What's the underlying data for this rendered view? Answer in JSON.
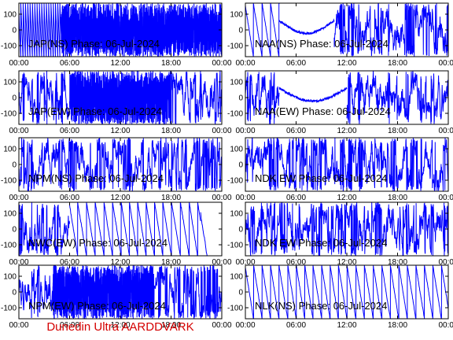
{
  "footer": "Dunedin Ultra AARDDVARK",
  "x_tick_labels": [
    "00:00",
    "06:00",
    "12:00",
    "18:00",
    "00:00"
  ],
  "y_tick_labels": [
    "100",
    "0",
    "-100"
  ],
  "colors": {
    "trace": "#0000ff",
    "footer": "#d40000",
    "axes": "#000000"
  },
  "chart_data": [
    {
      "type": "line",
      "title": "JAP(NS) Phase: 06-Jul-2024",
      "ylim": [
        -170,
        170
      ],
      "xlim": [
        0,
        24
      ],
      "xticks": [
        "00:00",
        "06:00",
        "12:00",
        "18:00",
        "00:00"
      ],
      "yticks": [
        100,
        0,
        -100
      ],
      "series": [
        {
          "pattern": "wraps-then-noise",
          "ranges": [
            [
              0,
              5,
              "wrap"
            ],
            [
              5,
              24,
              "dense"
            ]
          ]
        }
      ]
    },
    {
      "type": "line",
      "title": "NAA(NS) Phase: 06-Jul-2024",
      "ylim": [
        -170,
        170
      ],
      "xlim": [
        0,
        24
      ],
      "xticks": [
        "00:00",
        "06:00",
        "12:00",
        "18:00",
        "00:00"
      ],
      "yticks": [
        100,
        0,
        -100
      ],
      "series": [
        {
          "pattern": "ramps-then-arc-then-noise",
          "ranges": [
            [
              0,
              4,
              "ramp"
            ],
            [
              4,
              10.5,
              "arc"
            ],
            [
              10.5,
              24,
              "noisy"
            ]
          ]
        }
      ]
    },
    {
      "type": "line",
      "title": "JAP(EW) Phase: 06-Jul-2024",
      "ylim": [
        -170,
        170
      ],
      "xlim": [
        0,
        24
      ],
      "xticks": [
        "00:00",
        "06:00",
        "12:00",
        "18:00",
        "00:00"
      ],
      "yticks": [
        100,
        0,
        -100
      ],
      "series": [
        {
          "pattern": "noise-dense-noise",
          "ranges": [
            [
              0,
              6,
              "noisy"
            ],
            [
              6,
              18,
              "dense"
            ],
            [
              18,
              24,
              "noisy"
            ]
          ]
        }
      ]
    },
    {
      "type": "line",
      "title": "NAA(EW) Phase: 06-Jul-2024",
      "ylim": [
        -170,
        170
      ],
      "xlim": [
        0,
        24
      ],
      "xticks": [
        "00:00",
        "06:00",
        "12:00",
        "18:00",
        "00:00"
      ],
      "yticks": [
        100,
        0,
        -100
      ],
      "series": [
        {
          "pattern": "noise-arc-noise",
          "ranges": [
            [
              0,
              4,
              "noisy"
            ],
            [
              4,
              12,
              "arc"
            ],
            [
              12,
              24,
              "noisy"
            ]
          ]
        }
      ]
    },
    {
      "type": "line",
      "title": "NPM(NS) Phase: 06-Jul-2024",
      "ylim": [
        -170,
        170
      ],
      "xlim": [
        0,
        24
      ],
      "xticks": [
        "00:00",
        "06:00",
        "12:00",
        "18:00",
        "00:00"
      ],
      "yticks": [
        100,
        0,
        -100
      ],
      "series": [
        {
          "pattern": "noise",
          "ranges": [
            [
              0,
              24,
              "noisy"
            ]
          ]
        }
      ]
    },
    {
      "type": "line",
      "title": "NDK EW Phase: 06-Jul-2024",
      "ylim": [
        -170,
        170
      ],
      "xlim": [
        0,
        24
      ],
      "xticks": [
        "00:00",
        "06:00",
        "12:00",
        "18:00",
        "00:00"
      ],
      "yticks": [
        100,
        0,
        -100
      ],
      "series": [
        {
          "pattern": "noisy-ramps",
          "ranges": [
            [
              0,
              24,
              "noisy"
            ]
          ]
        }
      ]
    },
    {
      "type": "line",
      "title": "NWC(EW) Phase: 06-Jul-2024",
      "ylim": [
        -170,
        170
      ],
      "xlim": [
        0,
        24
      ],
      "xticks": [
        "00:00",
        "06:00",
        "12:00",
        "18:00",
        "00:00"
      ],
      "yticks": [
        100,
        0,
        -100
      ],
      "series": [
        {
          "pattern": "noise-then-ramps",
          "ranges": [
            [
              0,
              6,
              "noisy"
            ],
            [
              6,
              21.5,
              "ramp"
            ],
            [
              21.5,
              24,
              "tail"
            ]
          ]
        }
      ]
    },
    {
      "type": "line",
      "title": "NDK EW Phase: 06-Jul-2024",
      "ylim": [
        -170,
        170
      ],
      "xlim": [
        0,
        24
      ],
      "xticks": [
        "00:00",
        "06:00",
        "12:00",
        "18:00",
        "00:00"
      ],
      "yticks": [
        100,
        0,
        -100
      ],
      "series": [
        {
          "pattern": "noisy-ramps",
          "ranges": [
            [
              0,
              24,
              "noisy"
            ]
          ]
        }
      ]
    },
    {
      "type": "line",
      "title": "NPM(EW) Phase: 06-Jul-2024",
      "ylim": [
        -170,
        170
      ],
      "xlim": [
        0,
        24
      ],
      "xticks": [
        "00:00",
        "06:00",
        "12:00",
        "18:00",
        "00:00"
      ],
      "yticks": [
        100,
        0,
        -100
      ],
      "series": [
        {
          "pattern": "noise-dense-noise",
          "ranges": [
            [
              0,
              4,
              "noisy"
            ],
            [
              4,
              16,
              "dense"
            ],
            [
              16,
              24,
              "noisy"
            ]
          ]
        }
      ]
    },
    {
      "type": "line",
      "title": "NLK(NS) Phase: 06-Jul-2024",
      "ylim": [
        -170,
        170
      ],
      "xlim": [
        0,
        24
      ],
      "xticks": [
        "00:00",
        "06:00",
        "12:00",
        "18:00",
        "00:00"
      ],
      "yticks": [
        100,
        0,
        -100
      ],
      "series": [
        {
          "pattern": "ramps",
          "ranges": [
            [
              0,
              24,
              "ramp"
            ]
          ]
        }
      ]
    }
  ]
}
